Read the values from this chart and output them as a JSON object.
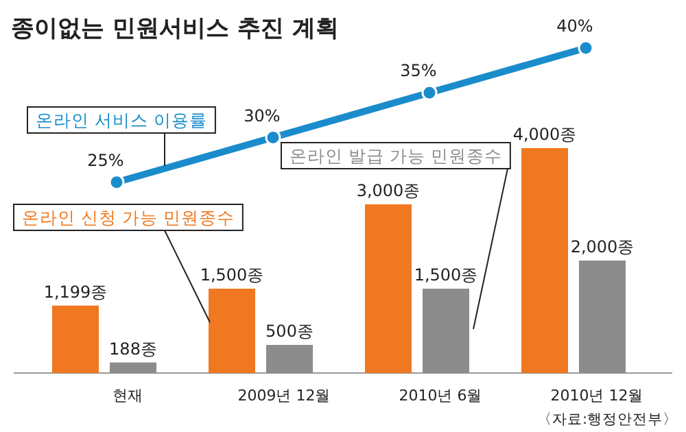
{
  "chart_data": {
    "type": "bar",
    "title": "종이없는 민원서비스 추진 계획",
    "categories": [
      "현재",
      "2009년 12월",
      "2010년 6월",
      "2010년 12월"
    ],
    "marker": "circle",
    "series": [
      {
        "name": "온라인 신청 가능 민원종수",
        "color": "#f07820",
        "values": [
          1199,
          1500,
          3000,
          4000
        ],
        "value_labels": [
          "1,199종",
          "1,500종",
          "3,000종",
          "4,000종"
        ]
      },
      {
        "name": "온라인 발급 가능 민원종수",
        "color": "#8c8c8c",
        "values": [
          188,
          500,
          1500,
          2000
        ],
        "value_labels": [
          "188종",
          "500종",
          "1,500종",
          "2,000종"
        ]
      },
      {
        "name": "온라인 서비스 이용률",
        "type": "line",
        "axis": "y2",
        "color": "#1a8ccc",
        "values": [
          25,
          30,
          35,
          40
        ],
        "value_labels": [
          "25%",
          "30%",
          "35%",
          "40%"
        ]
      }
    ],
    "annotations": [
      "〈자료:행정안전부〉"
    ]
  }
}
